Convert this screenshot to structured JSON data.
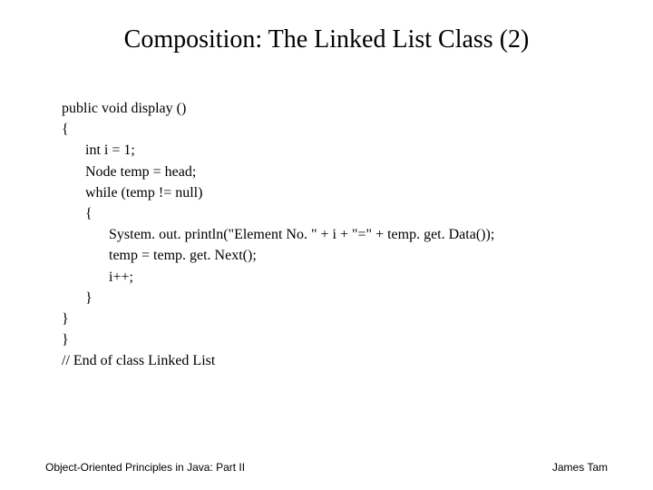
{
  "title": "Composition: The Linked List Class (2)",
  "code": {
    "l1": "public void display ()",
    "l2": "{",
    "l3": "int i = 1;",
    "l4": "Node temp = head;",
    "l5": "while (temp != null)",
    "l6": "{",
    "l7": "System. out. println(\"Element No. \" + i + \"=\" + temp. get. Data());",
    "l8": "temp = temp. get. Next();",
    "l9": "i++;",
    "l10": "}",
    "l11": "}",
    "l12": "}",
    "l13": "// End of class Linked List"
  },
  "footer": {
    "left": "Object-Oriented Principles in Java: Part II",
    "right": "James Tam"
  },
  "colors": {
    "background": "#ffffff",
    "text": "#000000"
  },
  "typography": {
    "title_fontsize": 28,
    "code_fontsize": 16,
    "footer_fontsize": 12,
    "code_font": "Times New Roman",
    "footer_font": "Arial"
  }
}
